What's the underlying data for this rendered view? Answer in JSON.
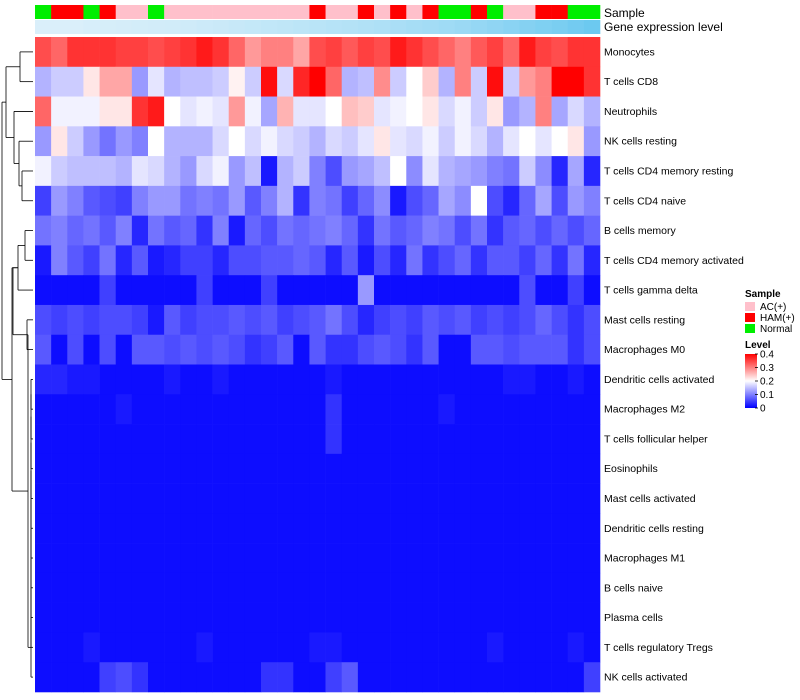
{
  "chart_data": {
    "type": "heatmap",
    "title": "",
    "annotation_tracks": [
      "Sample",
      "Gene expression level"
    ],
    "rows": [
      "Monocytes",
      "T cells CD8",
      "Neutrophils",
      "NK cells resting",
      "T cells CD4 memory resting",
      "T cells CD4 naive",
      "B cells memory",
      "T cells CD4 memory activated",
      "T cells gamma delta",
      "Mast cells resting",
      "Macrophages M0",
      "Dendritic cells activated",
      "Macrophages M2",
      "T cells follicular helper",
      "Eosinophils",
      "Mast cells activated",
      "Dendritic cells resting",
      "Macrophages M1",
      "B cells naive",
      "Plasma cells",
      "T cells regulatory  Tregs",
      "NK cells activated"
    ],
    "sample_groups": [
      "Normal",
      "HAM(+)",
      "HAM(+)",
      "Normal",
      "HAM(+)",
      "AC(+)",
      "AC(+)",
      "Normal",
      "AC(+)",
      "AC(+)",
      "AC(+)",
      "AC(+)",
      "AC(+)",
      "AC(+)",
      "AC(+)",
      "AC(+)",
      "AC(+)",
      "HAM(+)",
      "AC(+)",
      "AC(+)",
      "HAM(+)",
      "AC(+)",
      "HAM(+)",
      "AC(+)",
      "HAM(+)",
      "Normal",
      "Normal",
      "HAM(+)",
      "Normal",
      "AC(+)",
      "AC(+)",
      "HAM(+)",
      "HAM(+)",
      "Normal",
      "Normal"
    ],
    "expression_level": [
      0.1,
      0.1,
      0.1,
      0.12,
      0.13,
      0.14,
      0.15,
      0.16,
      0.17,
      0.18,
      0.2,
      0.22,
      0.24,
      0.26,
      0.28,
      0.3,
      0.32,
      0.34,
      0.36,
      0.38,
      0.4,
      0.42,
      0.45,
      0.48,
      0.5,
      0.53,
      0.56,
      0.6,
      0.64,
      0.68,
      0.72,
      0.76,
      0.8,
      0.85,
      0.9
    ],
    "values": [
      [
        0.34,
        0.32,
        0.36,
        0.36,
        0.36,
        0.35,
        0.35,
        0.34,
        0.35,
        0.36,
        0.38,
        0.36,
        0.32,
        0.28,
        0.3,
        0.3,
        0.27,
        0.34,
        0.35,
        0.33,
        0.35,
        0.34,
        0.38,
        0.36,
        0.34,
        0.32,
        0.3,
        0.33,
        0.35,
        0.32,
        0.38,
        0.35,
        0.34,
        0.36,
        0.36
      ],
      [
        0.14,
        0.16,
        0.16,
        0.22,
        0.27,
        0.27,
        0.12,
        0.18,
        0.14,
        0.15,
        0.15,
        0.16,
        0.21,
        0.16,
        0.39,
        0.17,
        0.37,
        0.42,
        0.32,
        0.14,
        0.15,
        0.29,
        0.16,
        0.2,
        0.24,
        0.14,
        0.3,
        0.16,
        0.39,
        0.16,
        0.28,
        0.3,
        0.42,
        0.42,
        0.36
      ],
      [
        0.32,
        0.19,
        0.19,
        0.19,
        0.22,
        0.22,
        0.36,
        0.38,
        0.2,
        0.18,
        0.19,
        0.18,
        0.28,
        0.19,
        0.13,
        0.26,
        0.18,
        0.18,
        0.2,
        0.25,
        0.24,
        0.18,
        0.19,
        0.2,
        0.22,
        0.17,
        0.19,
        0.16,
        0.22,
        0.12,
        0.14,
        0.3,
        0.13,
        0.17,
        0.14
      ],
      [
        0.12,
        0.22,
        0.16,
        0.12,
        0.09,
        0.12,
        0.1,
        0.2,
        0.14,
        0.14,
        0.14,
        0.17,
        0.2,
        0.17,
        0.19,
        0.17,
        0.16,
        0.14,
        0.17,
        0.16,
        0.18,
        0.22,
        0.18,
        0.17,
        0.19,
        0.16,
        0.19,
        0.17,
        0.14,
        0.18,
        0.2,
        0.18,
        0.2,
        0.22,
        0.12
      ],
      [
        0.19,
        0.16,
        0.15,
        0.15,
        0.15,
        0.14,
        0.18,
        0.17,
        0.14,
        0.12,
        0.17,
        0.19,
        0.12,
        0.15,
        0.02,
        0.14,
        0.16,
        0.1,
        0.06,
        0.12,
        0.13,
        0.15,
        0.2,
        0.11,
        0.18,
        0.14,
        0.13,
        0.12,
        0.1,
        0.09,
        0.16,
        0.11,
        0.03,
        0.13,
        0.03
      ],
      [
        0.05,
        0.12,
        0.1,
        0.07,
        0.06,
        0.05,
        0.1,
        0.12,
        0.12,
        0.09,
        0.1,
        0.09,
        0.12,
        0.07,
        0.1,
        0.14,
        0.04,
        0.1,
        0.09,
        0.05,
        0.08,
        0.11,
        0.02,
        0.06,
        0.08,
        0.13,
        0.11,
        0.2,
        0.06,
        0.03,
        0.08,
        0.13,
        0.06,
        0.12,
        0.1
      ],
      [
        0.09,
        0.1,
        0.08,
        0.09,
        0.07,
        0.1,
        0.03,
        0.09,
        0.07,
        0.08,
        0.04,
        0.1,
        0.02,
        0.08,
        0.06,
        0.09,
        0.08,
        0.09,
        0.1,
        0.08,
        0.04,
        0.09,
        0.07,
        0.08,
        0.1,
        0.09,
        0.06,
        0.09,
        0.04,
        0.07,
        0.08,
        0.06,
        0.08,
        0.06,
        0.08
      ],
      [
        0.02,
        0.1,
        0.07,
        0.05,
        0.09,
        0.03,
        0.07,
        0.02,
        0.03,
        0.05,
        0.05,
        0.03,
        0.06,
        0.06,
        0.07,
        0.07,
        0.08,
        0.07,
        0.03,
        0.07,
        0.02,
        0.06,
        0.03,
        0.09,
        0.04,
        0.06,
        0.08,
        0.04,
        0.07,
        0.07,
        0.05,
        0.08,
        0.04,
        0.09,
        0.03
      ],
      [
        0.01,
        0.01,
        0.01,
        0.01,
        0.05,
        0.01,
        0.01,
        0.01,
        0.01,
        0.01,
        0.05,
        0.01,
        0.01,
        0.01,
        0.05,
        0.01,
        0.01,
        0.01,
        0.01,
        0.01,
        0.12,
        0.01,
        0.01,
        0.01,
        0.01,
        0.01,
        0.01,
        0.01,
        0.01,
        0.01,
        0.06,
        0.01,
        0.01,
        0.05,
        0.01
      ],
      [
        0.06,
        0.05,
        0.06,
        0.05,
        0.06,
        0.06,
        0.05,
        0.02,
        0.07,
        0.05,
        0.06,
        0.06,
        0.07,
        0.06,
        0.07,
        0.05,
        0.06,
        0.07,
        0.09,
        0.06,
        0.03,
        0.05,
        0.06,
        0.05,
        0.07,
        0.06,
        0.07,
        0.05,
        0.06,
        0.05,
        0.06,
        0.08,
        0.06,
        0.04,
        0.06
      ],
      [
        0.07,
        0.01,
        0.06,
        0.01,
        0.06,
        0.01,
        0.07,
        0.07,
        0.06,
        0.07,
        0.06,
        0.07,
        0.06,
        0.04,
        0.05,
        0.07,
        0.01,
        0.07,
        0.04,
        0.04,
        0.06,
        0.07,
        0.06,
        0.04,
        0.07,
        0.01,
        0.01,
        0.07,
        0.07,
        0.06,
        0.07,
        0.07,
        0.07,
        0.04,
        0.06
      ],
      [
        0.03,
        0.03,
        0.02,
        0.02,
        0.01,
        0.01,
        0.01,
        0.01,
        0.02,
        0.01,
        0.01,
        0.02,
        0.01,
        0.01,
        0.01,
        0.01,
        0.01,
        0.01,
        0.02,
        0.01,
        0.01,
        0.01,
        0.01,
        0.01,
        0.01,
        0.01,
        0.01,
        0.01,
        0.01,
        0.02,
        0.02,
        0.01,
        0.01,
        0.02,
        0.01
      ],
      [
        0.01,
        0.01,
        0.01,
        0.01,
        0.01,
        0.02,
        0.01,
        0.01,
        0.01,
        0.01,
        0.01,
        0.01,
        0.01,
        0.01,
        0.01,
        0.01,
        0.01,
        0.01,
        0.04,
        0.01,
        0.01,
        0.01,
        0.01,
        0.01,
        0.01,
        0.02,
        0.01,
        0.01,
        0.01,
        0.01,
        0.01,
        0.01,
        0.01,
        0.01,
        0.01
      ],
      [
        0.01,
        0.01,
        0.01,
        0.01,
        0.01,
        0.01,
        0.01,
        0.01,
        0.01,
        0.01,
        0.01,
        0.01,
        0.01,
        0.01,
        0.01,
        0.01,
        0.01,
        0.01,
        0.04,
        0.01,
        0.01,
        0.01,
        0.01,
        0.01,
        0.01,
        0.01,
        0.01,
        0.01,
        0.01,
        0.01,
        0.01,
        0.01,
        0.01,
        0.01,
        0.01
      ],
      [
        0.01,
        0.01,
        0.01,
        0.01,
        0.01,
        0.01,
        0.01,
        0.01,
        0.01,
        0.01,
        0.01,
        0.01,
        0.01,
        0.01,
        0.01,
        0.01,
        0.01,
        0.01,
        0.01,
        0.01,
        0.01,
        0.01,
        0.01,
        0.01,
        0.01,
        0.01,
        0.01,
        0.01,
        0.01,
        0.01,
        0.01,
        0.01,
        0.01,
        0.01,
        0.01
      ],
      [
        0.01,
        0.01,
        0.01,
        0.01,
        0.01,
        0.01,
        0.01,
        0.01,
        0.01,
        0.01,
        0.01,
        0.01,
        0.01,
        0.01,
        0.01,
        0.01,
        0.01,
        0.01,
        0.01,
        0.01,
        0.01,
        0.01,
        0.01,
        0.01,
        0.01,
        0.01,
        0.01,
        0.01,
        0.01,
        0.01,
        0.01,
        0.01,
        0.01,
        0.01,
        0.01
      ],
      [
        0.01,
        0.01,
        0.01,
        0.01,
        0.01,
        0.01,
        0.01,
        0.01,
        0.01,
        0.01,
        0.01,
        0.01,
        0.01,
        0.01,
        0.01,
        0.01,
        0.01,
        0.01,
        0.01,
        0.01,
        0.01,
        0.01,
        0.01,
        0.01,
        0.01,
        0.01,
        0.01,
        0.01,
        0.01,
        0.01,
        0.01,
        0.01,
        0.01,
        0.01,
        0.01
      ],
      [
        0.01,
        0.01,
        0.01,
        0.01,
        0.01,
        0.01,
        0.01,
        0.01,
        0.01,
        0.01,
        0.01,
        0.01,
        0.01,
        0.01,
        0.01,
        0.01,
        0.01,
        0.01,
        0.01,
        0.01,
        0.01,
        0.01,
        0.01,
        0.01,
        0.01,
        0.01,
        0.01,
        0.01,
        0.01,
        0.01,
        0.01,
        0.01,
        0.01,
        0.01,
        0.01
      ],
      [
        0.01,
        0.01,
        0.01,
        0.01,
        0.01,
        0.01,
        0.01,
        0.01,
        0.01,
        0.01,
        0.01,
        0.01,
        0.01,
        0.01,
        0.01,
        0.01,
        0.01,
        0.01,
        0.01,
        0.01,
        0.01,
        0.01,
        0.01,
        0.01,
        0.01,
        0.01,
        0.01,
        0.01,
        0.01,
        0.01,
        0.01,
        0.01,
        0.01,
        0.01,
        0.01
      ],
      [
        0.01,
        0.01,
        0.01,
        0.01,
        0.01,
        0.01,
        0.01,
        0.01,
        0.01,
        0.01,
        0.01,
        0.01,
        0.01,
        0.01,
        0.01,
        0.01,
        0.01,
        0.01,
        0.01,
        0.01,
        0.01,
        0.01,
        0.01,
        0.01,
        0.01,
        0.01,
        0.01,
        0.01,
        0.01,
        0.01,
        0.01,
        0.01,
        0.01,
        0.01,
        0.01
      ],
      [
        0.01,
        0.01,
        0.01,
        0.02,
        0.01,
        0.01,
        0.01,
        0.01,
        0.01,
        0.01,
        0.02,
        0.01,
        0.01,
        0.01,
        0.01,
        0.01,
        0.01,
        0.02,
        0.02,
        0.01,
        0.01,
        0.01,
        0.01,
        0.01,
        0.01,
        0.01,
        0.01,
        0.01,
        0.02,
        0.01,
        0.01,
        0.01,
        0.01,
        0.02,
        0.01
      ],
      [
        0.01,
        0.01,
        0.01,
        0.01,
        0.05,
        0.06,
        0.04,
        0.01,
        0.01,
        0.01,
        0.01,
        0.01,
        0.01,
        0.01,
        0.04,
        0.04,
        0.01,
        0.01,
        0.05,
        0.07,
        0.01,
        0.01,
        0.01,
        0.01,
        0.01,
        0.01,
        0.01,
        0.01,
        0.01,
        0.01,
        0.01,
        0.01,
        0.01,
        0.01,
        0.05
      ]
    ],
    "legend": {
      "sample_title": "Sample",
      "sample_entries": [
        {
          "label": "AC(+)",
          "color": "#ffc0cb"
        },
        {
          "label": "HAM(+)",
          "color": "#ff0000"
        },
        {
          "label": "Normal",
          "color": "#00ee00"
        }
      ],
      "level_title": "Level",
      "level_ticks": [
        "0.4",
        "0.3",
        "0.2",
        "0.1",
        "0"
      ],
      "level_range": [
        0,
        0.4
      ],
      "position": "right"
    },
    "colors": {
      "low": "#0000ff",
      "mid": "#ffffff",
      "high": "#ff0000",
      "expr_low": "#e8f4fb",
      "expr_high": "#5ec4ef"
    }
  }
}
